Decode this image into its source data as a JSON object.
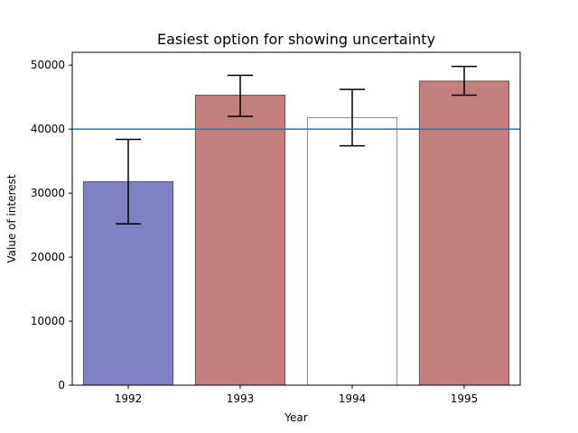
{
  "chart_data": {
    "type": "bar",
    "title": "Easiest option for showing uncertainty",
    "xlabel": "Year",
    "ylabel": "Value of interest",
    "categories": [
      "1992",
      "1993",
      "1994",
      "1995"
    ],
    "values": [
      31800,
      45300,
      41800,
      47500
    ],
    "errors": [
      [
        25200,
        38400
      ],
      [
        42000,
        48400
      ],
      [
        37400,
        46200
      ],
      [
        45300,
        49800
      ]
    ],
    "bar_fill_colors": [
      "#8080c4",
      "#c27f7d",
      "#ffffff",
      "#c27f7d"
    ],
    "bar_edge_colors": [
      "#50507a",
      "#6a5050",
      "#888888",
      "#6a5050"
    ],
    "reference_line": {
      "value": 40000,
      "color": "#1f77b4"
    },
    "ylim": [
      0,
      52000
    ],
    "yticks": [
      "0",
      "10000",
      "20000",
      "30000",
      "40000",
      "50000"
    ],
    "ytick_values": [
      0,
      10000,
      20000,
      30000,
      40000,
      50000
    ],
    "grid": false,
    "legend": "none"
  }
}
